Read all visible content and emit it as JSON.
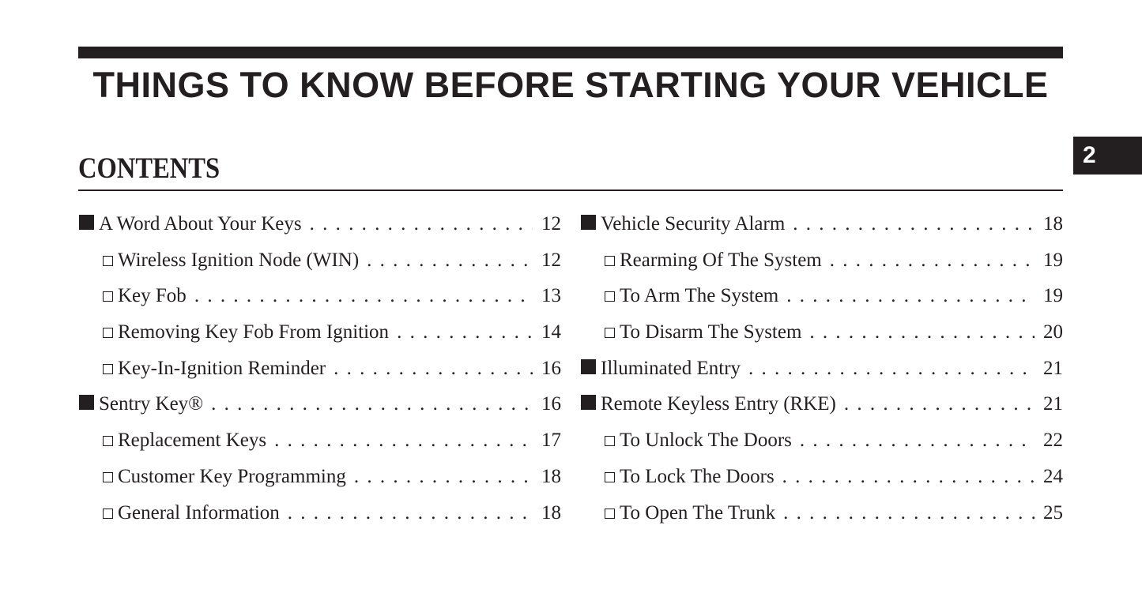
{
  "title": "THINGS TO KNOW BEFORE STARTING YOUR VEHICLE",
  "chapter_tab": "2",
  "contents_heading": "CONTENTS",
  "left": [
    {
      "level": 1,
      "label": "A Word About Your Keys",
      "page": "12"
    },
    {
      "level": 2,
      "label": "Wireless Ignition Node (WIN)",
      "page": "12"
    },
    {
      "level": 2,
      "label": "Key Fob",
      "page": "13"
    },
    {
      "level": 2,
      "label": "Removing Key Fob From Ignition",
      "page": "14"
    },
    {
      "level": 2,
      "label": "Key-In-Ignition Reminder",
      "page": "16"
    },
    {
      "level": 1,
      "label": "Sentry Key®",
      "page": "16"
    },
    {
      "level": 2,
      "label": "Replacement Keys",
      "page": "17"
    },
    {
      "level": 2,
      "label": "Customer Key Programming",
      "page": "18"
    },
    {
      "level": 2,
      "label": "General Information",
      "page": "18"
    }
  ],
  "right": [
    {
      "level": 1,
      "label": "Vehicle Security Alarm",
      "page": "18"
    },
    {
      "level": 2,
      "label": "Rearming Of The System",
      "page": "19"
    },
    {
      "level": 2,
      "label": "To Arm The System",
      "page": "19"
    },
    {
      "level": 2,
      "label": "To Disarm The System",
      "page": "20"
    },
    {
      "level": 1,
      "label": "Illuminated Entry",
      "page": "21"
    },
    {
      "level": 1,
      "label": "Remote Keyless Entry (RKE)",
      "page": "21"
    },
    {
      "level": 2,
      "label": "To Unlock The Doors",
      "page": "22"
    },
    {
      "level": 2,
      "label": "To Lock The Doors",
      "page": "24"
    },
    {
      "level": 2,
      "label": "To Open The Trunk",
      "page": "25"
    }
  ]
}
